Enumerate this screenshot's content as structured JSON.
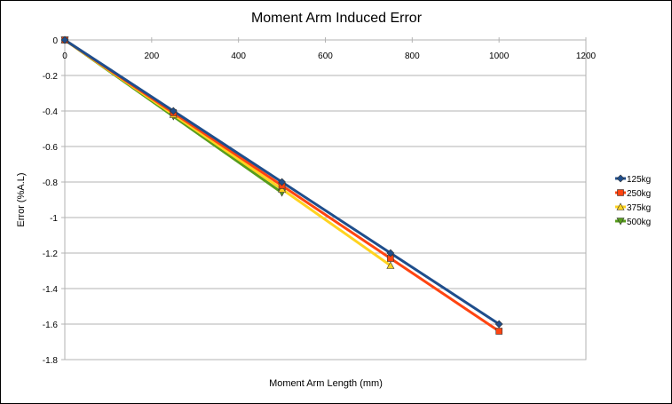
{
  "chart_data": {
    "type": "line",
    "title": "Moment Arm Induced Error",
    "xlabel": "Moment Arm Length (mm)",
    "ylabel": "Error (%A.L)",
    "xlim": [
      0,
      1200
    ],
    "ylim": [
      -1.8,
      0
    ],
    "x_ticks": [
      "0",
      "200",
      "400",
      "600",
      "800",
      "1000",
      "1200"
    ],
    "y_ticks": [
      "0",
      "-0.2",
      "-0.4",
      "-0.6",
      "-0.8",
      "-1",
      "-1.2",
      "-1.4",
      "-1.6",
      "-1.8"
    ],
    "grid": "horizontal",
    "legend_position": "right",
    "series": [
      {
        "name": "125kg",
        "color": "#1f4e8c",
        "marker": "diamond",
        "x": [
          0,
          250,
          500,
          750,
          1000
        ],
        "values": [
          0,
          -0.4,
          -0.8,
          -1.2,
          -1.6
        ]
      },
      {
        "name": "250kg",
        "color": "#ff4411",
        "marker": "square",
        "x": [
          0,
          250,
          500,
          750,
          1000
        ],
        "values": [
          0,
          -0.41,
          -0.82,
          -1.23,
          -1.64
        ]
      },
      {
        "name": "375kg",
        "color": "#ffd320",
        "marker": "triangle-up",
        "x": [
          0,
          250,
          500,
          750
        ],
        "values": [
          0,
          -0.42,
          -0.84,
          -1.27
        ]
      },
      {
        "name": "500kg",
        "color": "#579d1c",
        "marker": "triangle-down",
        "x": [
          0,
          250,
          500
        ],
        "values": [
          0,
          -0.43,
          -0.86
        ]
      }
    ]
  }
}
